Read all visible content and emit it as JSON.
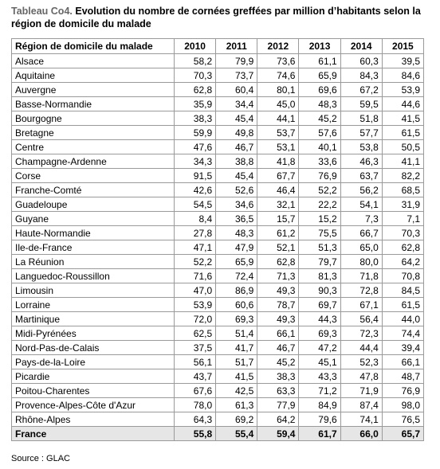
{
  "header": {
    "label": "Tableau Co4.",
    "title": "Evolution du nombre de cornées greffées par million d’habitants selon la région de domicile du malade"
  },
  "table": {
    "columns": [
      "Région de domicile du malade",
      "2010",
      "2011",
      "2012",
      "2013",
      "2014",
      "2015"
    ],
    "rows": [
      [
        "Alsace",
        "58,2",
        "79,9",
        "73,6",
        "61,1",
        "60,3",
        "39,5"
      ],
      [
        "Aquitaine",
        "70,3",
        "73,7",
        "74,6",
        "65,9",
        "84,3",
        "84,6"
      ],
      [
        "Auvergne",
        "62,8",
        "60,4",
        "80,1",
        "69,6",
        "67,2",
        "53,9"
      ],
      [
        "Basse-Normandie",
        "35,9",
        "34,4",
        "45,0",
        "48,3",
        "59,5",
        "44,6"
      ],
      [
        "Bourgogne",
        "38,3",
        "45,4",
        "44,1",
        "45,2",
        "51,8",
        "41,5"
      ],
      [
        "Bretagne",
        "59,9",
        "49,8",
        "53,7",
        "57,6",
        "57,7",
        "61,5"
      ],
      [
        "Centre",
        "47,6",
        "46,7",
        "53,1",
        "40,1",
        "53,8",
        "50,5"
      ],
      [
        "Champagne-Ardenne",
        "34,3",
        "38,8",
        "41,8",
        "33,6",
        "46,3",
        "41,1"
      ],
      [
        "Corse",
        "91,5",
        "45,4",
        "67,7",
        "76,9",
        "63,7",
        "82,2"
      ],
      [
        "Franche-Comté",
        "42,6",
        "52,6",
        "46,4",
        "52,2",
        "56,2",
        "68,5"
      ],
      [
        "Guadeloupe",
        "54,5",
        "34,6",
        "32,1",
        "22,2",
        "54,1",
        "31,9"
      ],
      [
        "Guyane",
        "8,4",
        "36,5",
        "15,7",
        "15,2",
        "7,3",
        "7,1"
      ],
      [
        "Haute-Normandie",
        "27,8",
        "48,3",
        "61,2",
        "75,5",
        "66,7",
        "70,3"
      ],
      [
        "Ile-de-France",
        "47,1",
        "47,9",
        "52,1",
        "51,3",
        "65,0",
        "62,8"
      ],
      [
        "La Réunion",
        "52,2",
        "65,9",
        "62,8",
        "79,7",
        "80,0",
        "64,2"
      ],
      [
        "Languedoc-Roussillon",
        "71,6",
        "72,4",
        "71,3",
        "81,3",
        "71,8",
        "70,8"
      ],
      [
        "Limousin",
        "47,0",
        "86,9",
        "49,3",
        "90,3",
        "72,8",
        "84,5"
      ],
      [
        "Lorraine",
        "53,9",
        "60,6",
        "78,7",
        "69,7",
        "67,1",
        "61,5"
      ],
      [
        "Martinique",
        "72,0",
        "69,3",
        "49,3",
        "44,3",
        "56,4",
        "44,0"
      ],
      [
        "Midi-Pyrénées",
        "62,5",
        "51,4",
        "66,1",
        "69,3",
        "72,3",
        "74,4"
      ],
      [
        "Nord-Pas-de-Calais",
        "37,5",
        "41,7",
        "46,7",
        "47,2",
        "44,4",
        "39,4"
      ],
      [
        "Pays-de-la-Loire",
        "56,1",
        "51,7",
        "45,2",
        "45,1",
        "52,3",
        "66,1"
      ],
      [
        "Picardie",
        "43,7",
        "41,5",
        "38,3",
        "43,3",
        "47,8",
        "48,7"
      ],
      [
        "Poitou-Charentes",
        "67,6",
        "42,5",
        "63,3",
        "71,2",
        "71,9",
        "76,9"
      ],
      [
        "Provence-Alpes-Côte d'Azur",
        "78,0",
        "61,3",
        "77,9",
        "84,9",
        "87,4",
        "98,0"
      ],
      [
        "Rhône-Alpes",
        "64,3",
        "69,2",
        "64,2",
        "79,6",
        "74,1",
        "76,5"
      ]
    ],
    "total": [
      "France",
      "55,8",
      "55,4",
      "59,4",
      "61,7",
      "66,0",
      "65,7"
    ]
  },
  "source": "Source : GLAC"
}
